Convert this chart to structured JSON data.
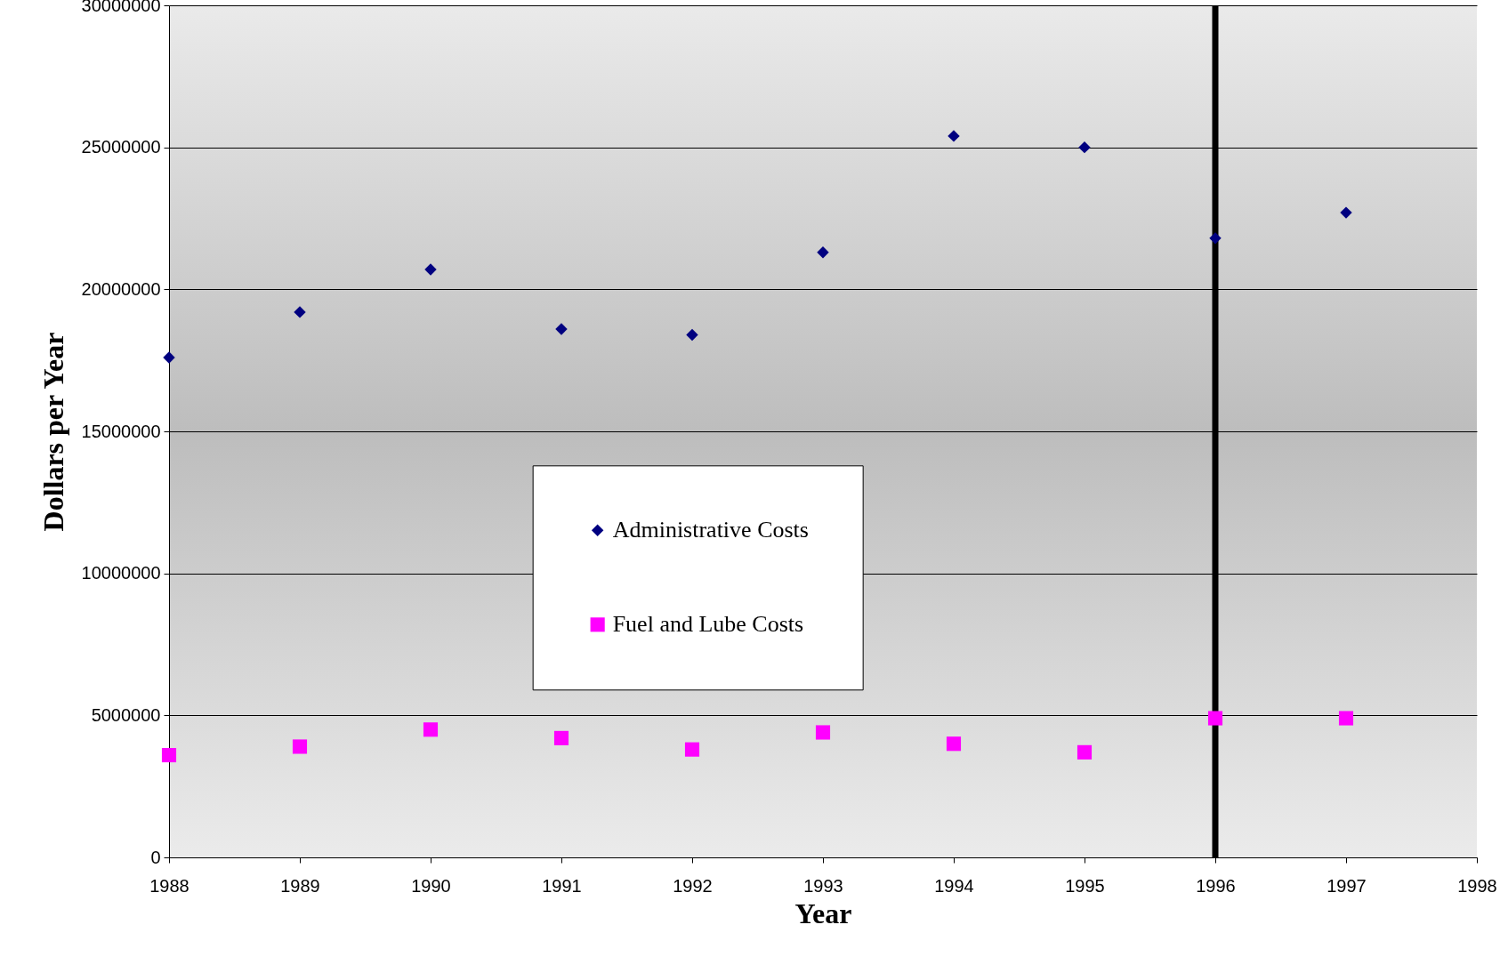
{
  "chart_data": {
    "type": "scatter",
    "xlabel": "Year",
    "ylabel": "Dollars per Year",
    "x": [
      1988,
      1989,
      1990,
      1991,
      1992,
      1993,
      1994,
      1995,
      1996,
      1997
    ],
    "series": [
      {
        "name": "Administrative Costs",
        "color": "#000080",
        "marker": "diamond",
        "values": [
          17600000,
          19200000,
          20700000,
          18600000,
          18400000,
          21300000,
          25400000,
          25000000,
          21800000,
          22700000
        ]
      },
      {
        "name": "Fuel and Lube Costs",
        "color": "#ff00ff",
        "marker": "square",
        "values": [
          3600000,
          3900000,
          4500000,
          4200000,
          3800000,
          4400000,
          4000000,
          3700000,
          4900000,
          4900000
        ]
      }
    ],
    "xlim": [
      1988,
      1998
    ],
    "xticks": [
      1988,
      1989,
      1990,
      1991,
      1992,
      1993,
      1994,
      1995,
      1996,
      1997,
      1998
    ],
    "ylim": [
      0,
      30000000
    ],
    "yticks": [
      0,
      5000000,
      10000000,
      15000000,
      20000000,
      25000000,
      30000000
    ],
    "grid": "y",
    "legend": "center",
    "ref_lines": [
      {
        "axis": "x",
        "value": 1996,
        "label": null,
        "color": "#000000"
      }
    ]
  }
}
